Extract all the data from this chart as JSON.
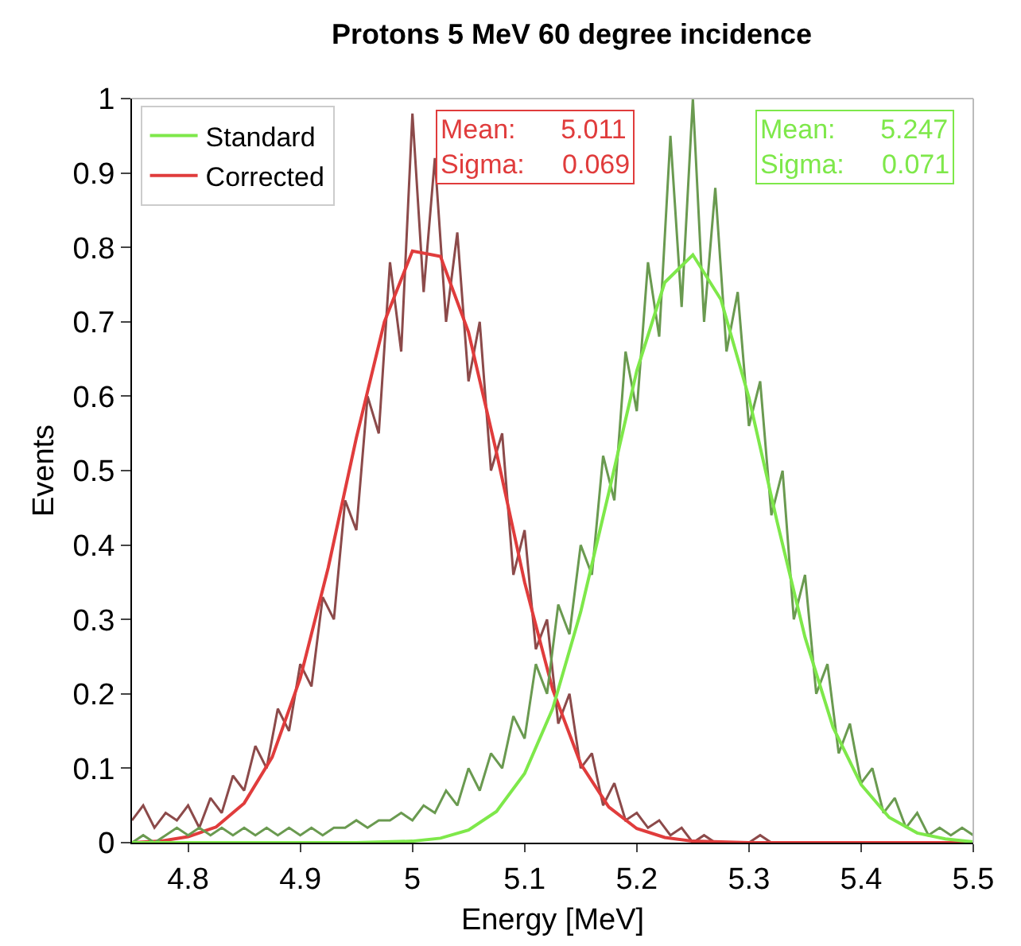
{
  "chart_data": {
    "type": "line",
    "title": "Protons 5 MeV 60 degree incidence",
    "xlabel": "Energy [MeV]",
    "ylabel": "Events",
    "xlim": [
      4.75,
      5.5
    ],
    "xticks": [
      4.8,
      4.9,
      5,
      5.1,
      5.2,
      5.3,
      5.4,
      5.5
    ],
    "ylim": [
      0,
      1
    ],
    "yticks": [
      0,
      0.1,
      0.2,
      0.3,
      0.4,
      0.5,
      0.6,
      0.7,
      0.8,
      0.9,
      1
    ],
    "grid": false,
    "legend": "top left",
    "marker": "none",
    "line_style": "solid",
    "annotations": [
      "Mean:      5.011",
      "Sigma:     0.069",
      "Mean:      5.247",
      "Sigma:     0.071"
    ],
    "series": [
      {
        "color": "#8c4a4a",
        "x": [
          4.75,
          4.76,
          4.77,
          4.78,
          4.79,
          4.8,
          4.81,
          4.82,
          4.83,
          4.84,
          4.85,
          4.86,
          4.87,
          4.88,
          4.89,
          4.9,
          4.91,
          4.92,
          4.93,
          4.94,
          4.95,
          4.96,
          4.97,
          4.98,
          4.99,
          5,
          5.01,
          5.02,
          5.03,
          5.04,
          5.05,
          5.06,
          5.07,
          5.08,
          5.09,
          5.1,
          5.11,
          5.12,
          5.13,
          5.14,
          5.15,
          5.16,
          5.17,
          5.18,
          5.19,
          5.2,
          5.21,
          5.22,
          5.23,
          5.24,
          5.25,
          5.26,
          5.27,
          5.28,
          5.29,
          5.3,
          5.31,
          5.32,
          5.33,
          5.34,
          5.35,
          5.36,
          5.37,
          5.38,
          5.39,
          5.4,
          5.41,
          5.42,
          5.43,
          5.44,
          5.45,
          5.46,
          5.47,
          5.48,
          5.49,
          5.5
        ],
        "values": [
          0.03,
          0.05,
          0.02,
          0.04,
          0.03,
          0.05,
          0.02,
          0.06,
          0.04,
          0.09,
          0.07,
          0.13,
          0.1,
          0.18,
          0.15,
          0.24,
          0.21,
          0.33,
          0.3,
          0.46,
          0.42,
          0.6,
          0.55,
          0.78,
          0.66,
          0.98,
          0.74,
          0.92,
          0.7,
          0.82,
          0.62,
          0.7,
          0.5,
          0.55,
          0.36,
          0.42,
          0.26,
          0.3,
          0.16,
          0.2,
          0.1,
          0.12,
          0.05,
          0.08,
          0.03,
          0.04,
          0.02,
          0.03,
          0.01,
          0.02,
          0,
          0.01,
          0,
          0,
          0,
          0,
          0.01,
          0,
          0,
          0,
          0,
          0,
          0,
          0,
          0,
          0,
          0,
          0,
          0,
          0,
          0,
          0,
          0,
          0,
          0,
          0
        ]
      },
      {
        "name": "Corrected",
        "color": "#e03c3c",
        "x": [
          4.75,
          4.775,
          4.8,
          4.825,
          4.85,
          4.875,
          4.9,
          4.925,
          4.95,
          4.975,
          5,
          5.025,
          5.05,
          5.075,
          5.1,
          5.125,
          5.15,
          5.175,
          5.2,
          5.225,
          5.25,
          5.3,
          5.4,
          5.5
        ],
        "values": [
          0,
          0.002,
          0.008,
          0.021,
          0.053,
          0.115,
          0.221,
          0.37,
          0.544,
          0.7,
          0.795,
          0.788,
          0.686,
          0.524,
          0.35,
          0.206,
          0.106,
          0.048,
          0.019,
          0.007,
          0.002,
          0,
          0,
          0
        ]
      },
      {
        "color": "#6a9a50",
        "x": [
          4.75,
          4.76,
          4.77,
          4.78,
          4.79,
          4.8,
          4.81,
          4.82,
          4.83,
          4.84,
          4.85,
          4.86,
          4.87,
          4.88,
          4.89,
          4.9,
          4.91,
          4.92,
          4.93,
          4.94,
          4.95,
          4.96,
          4.97,
          4.98,
          4.99,
          5,
          5.01,
          5.02,
          5.03,
          5.04,
          5.05,
          5.06,
          5.07,
          5.08,
          5.09,
          5.1,
          5.11,
          5.12,
          5.13,
          5.14,
          5.15,
          5.16,
          5.17,
          5.18,
          5.19,
          5.2,
          5.21,
          5.22,
          5.23,
          5.24,
          5.25,
          5.26,
          5.27,
          5.28,
          5.29,
          5.3,
          5.31,
          5.32,
          5.33,
          5.34,
          5.35,
          5.36,
          5.37,
          5.38,
          5.39,
          5.4,
          5.41,
          5.42,
          5.43,
          5.44,
          5.45,
          5.46,
          5.47,
          5.48,
          5.49,
          5.5
        ],
        "values": [
          0,
          0.01,
          0,
          0.01,
          0.02,
          0.01,
          0.02,
          0.01,
          0.02,
          0.01,
          0.02,
          0.01,
          0.02,
          0.01,
          0.02,
          0.01,
          0.02,
          0.01,
          0.02,
          0.02,
          0.03,
          0.02,
          0.03,
          0.03,
          0.04,
          0.03,
          0.05,
          0.04,
          0.07,
          0.05,
          0.1,
          0.07,
          0.12,
          0.1,
          0.17,
          0.14,
          0.24,
          0.2,
          0.32,
          0.28,
          0.4,
          0.36,
          0.52,
          0.46,
          0.66,
          0.58,
          0.78,
          0.68,
          0.95,
          0.72,
          1,
          0.7,
          0.88,
          0.66,
          0.74,
          0.56,
          0.62,
          0.44,
          0.5,
          0.3,
          0.36,
          0.2,
          0.24,
          0.12,
          0.16,
          0.08,
          0.1,
          0.04,
          0.06,
          0.02,
          0.04,
          0.01,
          0.02,
          0.01,
          0.02,
          0.01
        ]
      },
      {
        "name": "Standard",
        "color": "#7ee84a",
        "x": [
          4.75,
          4.9,
          4.95,
          5,
          5.025,
          5.05,
          5.075,
          5.1,
          5.125,
          5.15,
          5.175,
          5.2,
          5.225,
          5.25,
          5.275,
          5.3,
          5.325,
          5.35,
          5.375,
          5.4,
          5.425,
          5.45,
          5.475,
          5.5
        ],
        "values": [
          0,
          0,
          0,
          0.002,
          0.006,
          0.017,
          0.042,
          0.093,
          0.18,
          0.31,
          0.47,
          0.634,
          0.753,
          0.79,
          0.73,
          0.598,
          0.432,
          0.276,
          0.155,
          0.078,
          0.034,
          0.013,
          0.005,
          0.001
        ]
      }
    ]
  }
}
